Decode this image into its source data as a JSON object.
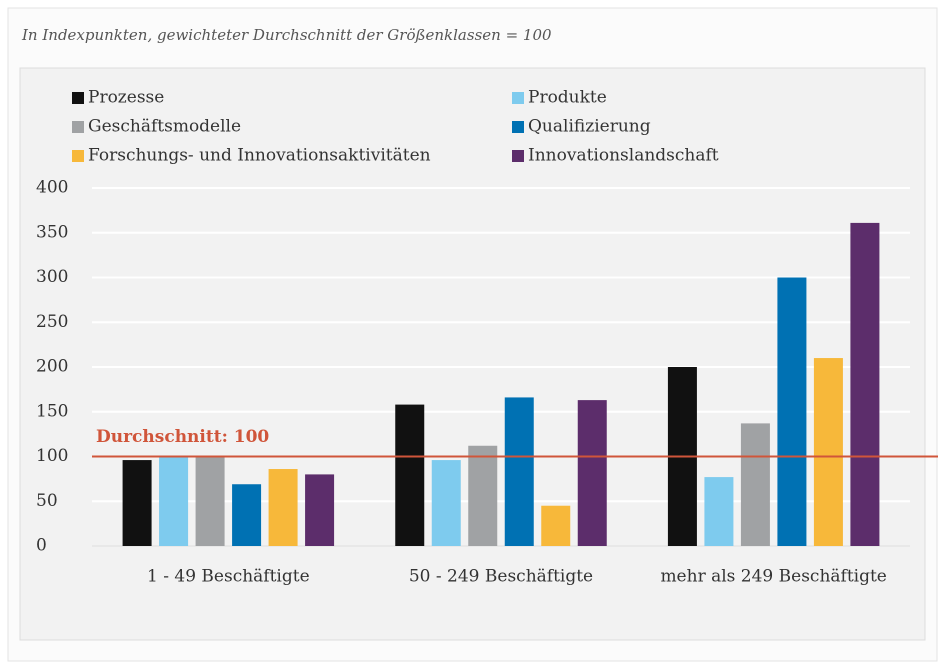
{
  "chart_data": {
    "type": "bar",
    "subtitle": "In Indexpunkten, gewichteter Durchschnitt der Größenklassen = 100",
    "categories": [
      "1 - 49 Beschäftigte",
      "50 - 249 Beschäftigte",
      "mehr als 249 Beschäftigte"
    ],
    "series": [
      {
        "name": "Prozesse",
        "color": "#111111",
        "values": [
          96,
          158,
          200
        ]
      },
      {
        "name": "Produkte",
        "color": "#7ecbee",
        "values": [
          101,
          96,
          77
        ]
      },
      {
        "name": "Geschäftsmodelle",
        "color": "#a0a2a4",
        "values": [
          100,
          112,
          137
        ]
      },
      {
        "name": "Qualifizierung",
        "color": "#0071b3",
        "values": [
          69,
          166,
          300
        ]
      },
      {
        "name": "Forschungs- und Innovationsaktivitäten",
        "color": "#f7b83a",
        "values": [
          86,
          45,
          210
        ]
      },
      {
        "name": "Innovationslandschaft",
        "color": "#5c2d6b",
        "values": [
          80,
          163,
          361
        ]
      }
    ],
    "ylim": [
      0,
      400
    ],
    "yticks": [
      0,
      50,
      100,
      150,
      200,
      250,
      300,
      350,
      400
    ],
    "grid": true,
    "reference_line": {
      "value": 100,
      "label": "Durchschnitt: 100",
      "color": "#d0553a"
    }
  }
}
